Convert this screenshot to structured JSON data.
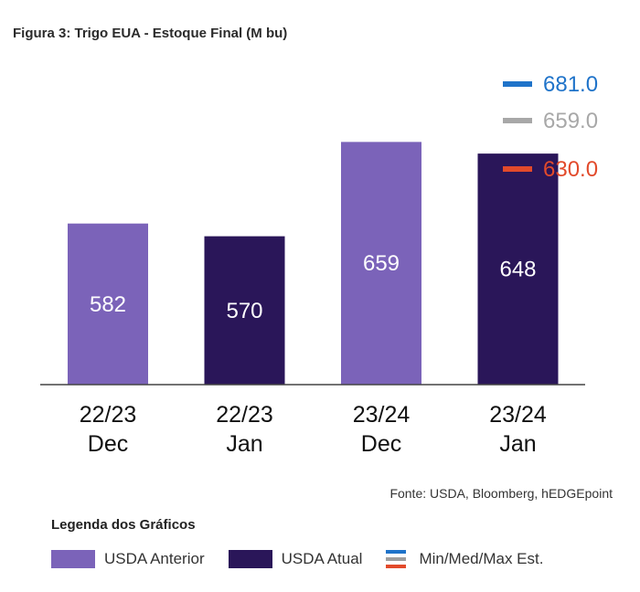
{
  "title": "Figura 3: Trigo EUA - Estoque Final (M bu)",
  "source": "Fonte: USDA, Bloomberg, hEDGEpoint",
  "legend": {
    "title": "Legenda dos Gráficos",
    "items": [
      {
        "label": "USDA Anterior",
        "color": "#7b63b9"
      },
      {
        "label": "USDA Atual",
        "color": "#2a1659"
      },
      {
        "label": "Min/Med/Max Est.",
        "colors": [
          "#1f73c9",
          "#9e9e9e",
          "#e24a2b"
        ]
      }
    ]
  },
  "chart_data": {
    "type": "bar",
    "categories": [
      {
        "line1": "22/23",
        "line2": "Dec"
      },
      {
        "line1": "22/23",
        "line2": "Jan"
      },
      {
        "line1": "23/24",
        "line2": "Dec"
      },
      {
        "line1": "23/24",
        "line2": "Jan"
      }
    ],
    "values": [
      582,
      570,
      659,
      648
    ],
    "value_labels": [
      "582",
      "570",
      "659",
      "648"
    ],
    "bar_series": [
      "USDA Anterior",
      "USDA Atual",
      "USDA Anterior",
      "USDA Atual"
    ],
    "colors": {
      "USDA Anterior": "#7b63b9",
      "USDA Atual": "#2a1659"
    },
    "estimates": [
      {
        "label": "681.0",
        "value": 681.0,
        "color": "#1f73c9",
        "kind": "max"
      },
      {
        "label": "659.0",
        "value": 659.0,
        "color": "#a8a8a8",
        "kind": "med"
      },
      {
        "label": "630.0",
        "value": 630.0,
        "color": "#e24a2b",
        "kind": "min"
      }
    ],
    "ylim": [
      430,
      680
    ],
    "grid": false
  }
}
